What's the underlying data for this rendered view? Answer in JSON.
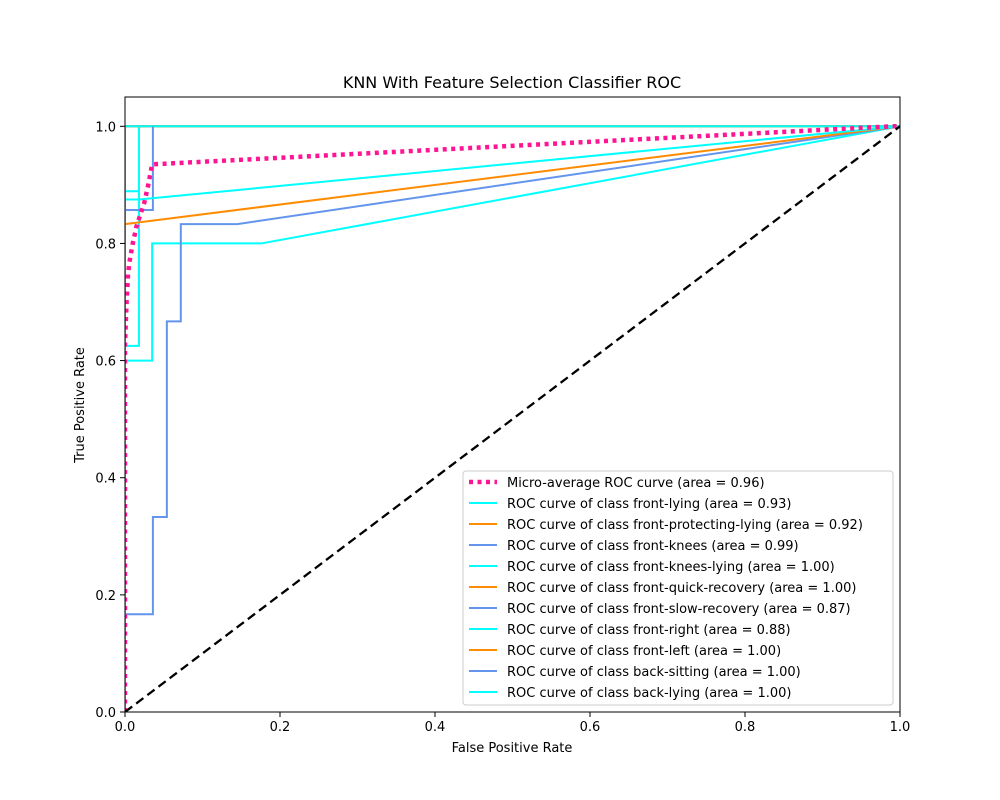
{
  "chart_data": {
    "type": "line",
    "title": "KNN With Feature Selection Classifier ROC",
    "xlabel": "False Positive Rate",
    "ylabel": "True Positive Rate",
    "xlim": [
      0.0,
      1.0
    ],
    "ylim": [
      0.0,
      1.05
    ],
    "xticks": [
      0.0,
      0.2,
      0.4,
      0.6,
      0.8,
      1.0
    ],
    "yticks": [
      0.0,
      0.2,
      0.4,
      0.6,
      0.8,
      1.0
    ],
    "xtick_labels": [
      "0.0",
      "0.2",
      "0.4",
      "0.6",
      "0.8",
      "1.0"
    ],
    "ytick_labels": [
      "0.0",
      "0.2",
      "0.4",
      "0.6",
      "0.8",
      "1.0"
    ],
    "grid": false,
    "legend_position": "lower-right",
    "series": [
      {
        "name": "Micro-average ROC curve (area = 0.96)",
        "color": "#ff1493",
        "style": "dotted",
        "x": [
          0.0,
          0.0,
          0.002,
          0.004,
          0.006,
          0.01,
          0.015,
          0.02,
          0.025,
          0.03,
          0.035,
          0.99,
          1.0
        ],
        "y": [
          0.0,
          0.63,
          0.7,
          0.75,
          0.77,
          0.8,
          0.83,
          0.85,
          0.87,
          0.9,
          0.935,
          1.0,
          1.0
        ]
      },
      {
        "name": "ROC curve of class front-lying (area = 0.93)",
        "color": "#00ffff",
        "style": "solid",
        "x": [
          0.0,
          0.0,
          0.018,
          0.018,
          1.0
        ],
        "y": [
          0.0,
          0.875,
          0.875,
          0.875,
          1.0
        ]
      },
      {
        "name": "ROC curve of class front-protecting-lying (area = 0.92)",
        "color": "#ff8c00",
        "style": "solid",
        "x": [
          0.0,
          0.0,
          1.0
        ],
        "y": [
          0.0,
          0.833,
          1.0
        ]
      },
      {
        "name": "ROC curve of class front-knees (area = 0.99)",
        "color": "#6495ed",
        "style": "solid",
        "x": [
          0.0,
          0.0,
          0.036,
          0.036,
          0.036
        ],
        "y": [
          0.0,
          0.857,
          0.857,
          1.0,
          1.0
        ]
      },
      {
        "name": "ROC curve of class front-knees-lying (area = 1.00)",
        "color": "#00ffff",
        "style": "solid",
        "x": [
          0.0,
          0.0,
          1.0
        ],
        "y": [
          0.0,
          1.0,
          1.0
        ]
      },
      {
        "name": "ROC curve of class front-quick-recovery (area = 1.00)",
        "color": "#ff8c00",
        "style": "solid",
        "x": [
          0.0,
          0.0,
          1.0
        ],
        "y": [
          0.0,
          1.0,
          1.0
        ]
      },
      {
        "name": "ROC curve of class front-slow-recovery (area = 0.87)",
        "color": "#6495ed",
        "style": "solid",
        "x": [
          0.0,
          0.0,
          0.036,
          0.036,
          0.054,
          0.054,
          0.072,
          0.072,
          0.145,
          1.0
        ],
        "y": [
          0.0,
          0.167,
          0.167,
          0.333,
          0.333,
          0.667,
          0.667,
          0.833,
          0.833,
          1.0
        ]
      },
      {
        "name": "ROC curve of class front-right (area = 0.88)",
        "color": "#00ffff",
        "style": "solid",
        "x": [
          0.0,
          0.0,
          0.035,
          0.035,
          0.176,
          1.0
        ],
        "y": [
          0.0,
          0.6,
          0.6,
          0.8,
          0.8,
          1.0
        ]
      },
      {
        "name": "ROC curve of class front-left (area = 1.00)",
        "color": "#ff8c00",
        "style": "solid",
        "x": [
          0.0,
          0.0,
          1.0
        ],
        "y": [
          0.0,
          1.0,
          1.0
        ]
      },
      {
        "name": "ROC curve of class back-sitting (area = 1.00)",
        "color": "#6495ed",
        "style": "solid",
        "x": [
          0.0,
          0.0,
          1.0
        ],
        "y": [
          0.0,
          1.0,
          1.0
        ]
      },
      {
        "name": "ROC curve of class back-lying (area = 1.00)",
        "color": "#00ffff",
        "style": "solid",
        "x": [
          0.0,
          0.0,
          1.0
        ],
        "y": [
          0.0,
          1.0,
          1.0
        ]
      }
    ],
    "extra_lines": [
      {
        "color": "#00ffff",
        "style": "solid",
        "x": [
          0.0,
          0.0,
          0.018,
          0.018,
          1.0
        ],
        "y": [
          0.0,
          0.625,
          0.625,
          1.0,
          1.0
        ]
      },
      {
        "color": "#00ffff",
        "style": "solid",
        "x": [
          0.0,
          0.0,
          0.018,
          0.018,
          1.0
        ],
        "y": [
          0.0,
          0.889,
          0.889,
          1.0,
          1.0
        ]
      }
    ],
    "reference_line": {
      "color": "#000000",
      "style": "dashed",
      "x": [
        0.0,
        1.0
      ],
      "y": [
        0.0,
        1.0
      ]
    }
  }
}
